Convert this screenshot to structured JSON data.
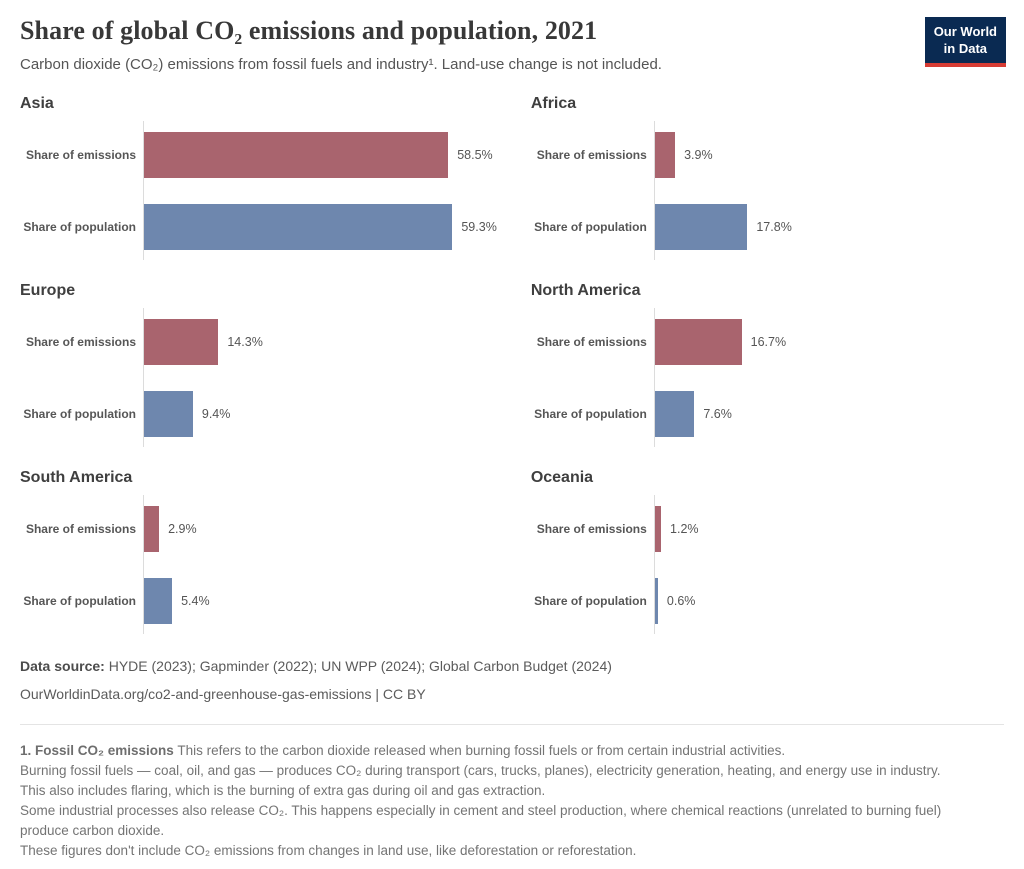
{
  "header": {
    "title": "Share of global CO₂ emissions and population, 2021",
    "subtitle": "Carbon dioxide (CO₂) emissions from fossil fuels and industry¹. Land-use change is not included.",
    "logo": {
      "line1": "Our World",
      "line2": "in Data",
      "bg_color": "#0a2a52",
      "stripe_color": "#d73c34"
    }
  },
  "chart_data": {
    "type": "bar",
    "orientation": "horizontal",
    "title": "Share of global CO₂ emissions and population, 2021",
    "unit": "%",
    "xlim": [
      0,
      60
    ],
    "grid": "off",
    "legend": "none",
    "categories": [
      "Share of emissions",
      "Share of population"
    ],
    "colors": {
      "emissions": "#a9646e",
      "population": "#6e87ae"
    },
    "panels": [
      {
        "region": "Asia",
        "bars": [
          {
            "series": "Share of emissions",
            "value": 58.5,
            "label": "58.5%"
          },
          {
            "series": "Share of population",
            "value": 59.3,
            "label": "59.3%"
          }
        ]
      },
      {
        "region": "Africa",
        "bars": [
          {
            "series": "Share of emissions",
            "value": 3.9,
            "label": "3.9%"
          },
          {
            "series": "Share of population",
            "value": 17.8,
            "label": "17.8%"
          }
        ]
      },
      {
        "region": "Europe",
        "bars": [
          {
            "series": "Share of emissions",
            "value": 14.3,
            "label": "14.3%"
          },
          {
            "series": "Share of population",
            "value": 9.4,
            "label": "9.4%"
          }
        ]
      },
      {
        "region": "North America",
        "bars": [
          {
            "series": "Share of emissions",
            "value": 16.7,
            "label": "16.7%"
          },
          {
            "series": "Share of population",
            "value": 7.6,
            "label": "7.6%"
          }
        ]
      },
      {
        "region": "South America",
        "bars": [
          {
            "series": "Share of emissions",
            "value": 2.9,
            "label": "2.9%"
          },
          {
            "series": "Share of population",
            "value": 5.4,
            "label": "5.4%"
          }
        ]
      },
      {
        "region": "Oceania",
        "bars": [
          {
            "series": "Share of emissions",
            "value": 1.2,
            "label": "1.2%"
          },
          {
            "series": "Share of population",
            "value": 0.6,
            "label": "0.6%"
          }
        ]
      }
    ]
  },
  "footer": {
    "source_label": "Data source:",
    "source_text": "HYDE (2023); Gapminder (2022); UN WPP (2024); Global Carbon Budget (2024)",
    "url_line": "OurWorldinData.org/co2-and-greenhouse-gas-emissions | CC BY"
  },
  "footnote": {
    "lead": "1. Fossil CO₂ emissions",
    "lead_rest": "This refers to the carbon dioxide released when burning fossil fuels or from certain industrial activities.",
    "paragraphs": [
      "Burning fossil fuels — coal, oil, and gas — produces CO₂ during transport (cars, trucks, planes), electricity generation, heating, and energy use in industry. This also includes flaring, which is the burning of extra gas during oil and gas extraction.",
      "Some industrial processes also release CO₂. This happens especially in cement and steel production, where chemical reactions (unrelated to burning fuel) produce carbon dioxide.",
      "These figures don't include CO₂ emissions from changes in land use, like deforestation or reforestation."
    ]
  }
}
